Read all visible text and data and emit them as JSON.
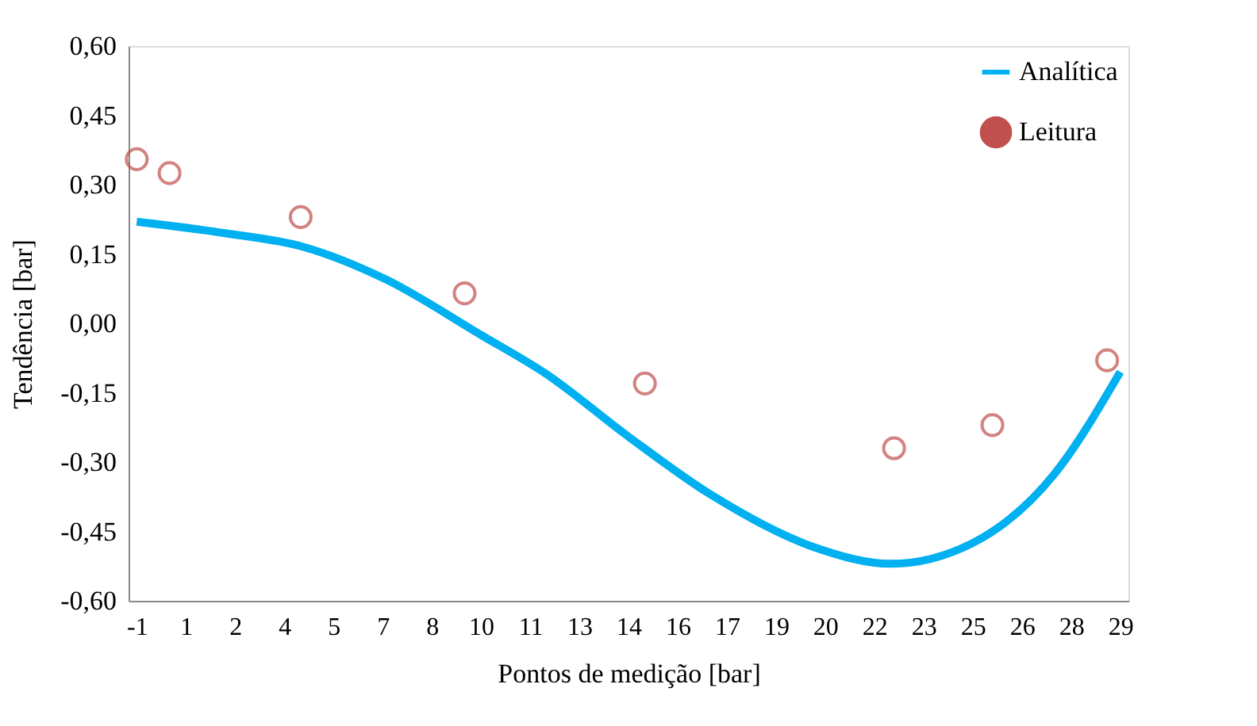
{
  "chart_data": {
    "type": "line",
    "xlabel": "Pontos de medição [bar]",
    "ylabel": "Tendência [bar]",
    "xlim": [
      -1.25,
      29.25
    ],
    "xticks": [
      {
        "value": -1,
        "label": "-1"
      },
      {
        "value": 0.5,
        "label": "1"
      },
      {
        "value": 2,
        "label": "2"
      },
      {
        "value": 3.5,
        "label": "4"
      },
      {
        "value": 5,
        "label": "5"
      },
      {
        "value": 6.5,
        "label": "7"
      },
      {
        "value": 8,
        "label": "8"
      },
      {
        "value": 9.5,
        "label": "10"
      },
      {
        "value": 11,
        "label": "11"
      },
      {
        "value": 12.5,
        "label": "13"
      },
      {
        "value": 14,
        "label": "14"
      },
      {
        "value": 15.5,
        "label": "16"
      },
      {
        "value": 17,
        "label": "17"
      },
      {
        "value": 18.5,
        "label": "19"
      },
      {
        "value": 20,
        "label": "20"
      },
      {
        "value": 21.5,
        "label": "22"
      },
      {
        "value": 23,
        "label": "23"
      },
      {
        "value": 24.5,
        "label": "25"
      },
      {
        "value": 26,
        "label": "26"
      },
      {
        "value": 27.5,
        "label": "28"
      },
      {
        "value": 29,
        "label": "29"
      }
    ],
    "ylim": [
      -0.6,
      0.6
    ],
    "yticks": [
      {
        "value": -0.6,
        "label": "-0,60"
      },
      {
        "value": -0.45,
        "label": "-0,45"
      },
      {
        "value": -0.3,
        "label": "-0,30"
      },
      {
        "value": -0.15,
        "label": "-0,15"
      },
      {
        "value": 0,
        "label": "0,00"
      },
      {
        "value": 0.15,
        "label": "0,15"
      },
      {
        "value": 0.3,
        "label": "0,30"
      },
      {
        "value": 0.45,
        "label": "0,45"
      },
      {
        "value": 0.6,
        "label": "0,60"
      }
    ],
    "grid": false,
    "legend": "top right",
    "series": [
      {
        "name": "Analítica",
        "color": "#00b0f0",
        "marker": "none",
        "line_style": "solid",
        "x": [
          -1,
          1.7,
          4.1,
          6.6,
          9.5,
          11.5,
          14,
          16.5,
          19.7,
          22,
          24.5,
          27,
          29
        ],
        "values": [
          0.22,
          0.195,
          0.165,
          0.095,
          -0.025,
          -0.11,
          -0.245,
          -0.37,
          -0.485,
          -0.52,
          -0.475,
          -0.325,
          -0.105
        ]
      },
      {
        "name": "Leitura",
        "type": "scatter",
        "color": "#c0504d",
        "marker": "circle",
        "x": [
          -1,
          0,
          4,
          9,
          14.5,
          22.1,
          25.1,
          28.6
        ],
        "values": [
          0.355,
          0.325,
          0.23,
          0.065,
          -0.13,
          -0.27,
          -0.22,
          -0.08
        ]
      }
    ]
  }
}
